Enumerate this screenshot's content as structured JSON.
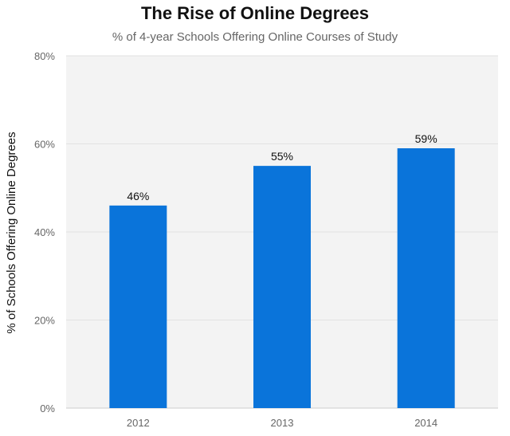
{
  "chart_data": {
    "type": "bar",
    "title": "The Rise of Online Degrees",
    "subtitle": "% of 4-year Schools Offering Online Courses of Study",
    "ylabel": "% of Schools Offering Online Degrees",
    "xlabel": "",
    "categories": [
      "2012",
      "2013",
      "2014"
    ],
    "values": [
      46,
      55,
      59
    ],
    "data_labels": [
      "46%",
      "55%",
      "59%"
    ],
    "ylim": [
      0,
      80
    ],
    "yticks": [
      0,
      20,
      40,
      60,
      80
    ],
    "ytick_labels": [
      "0%",
      "20%",
      "40%",
      "60%",
      "80%"
    ],
    "grid": true,
    "legend": "none",
    "colors": {
      "bar": "#0a74da",
      "plot_background": "#f3f3f3",
      "grid": "#e2e2e2"
    }
  }
}
